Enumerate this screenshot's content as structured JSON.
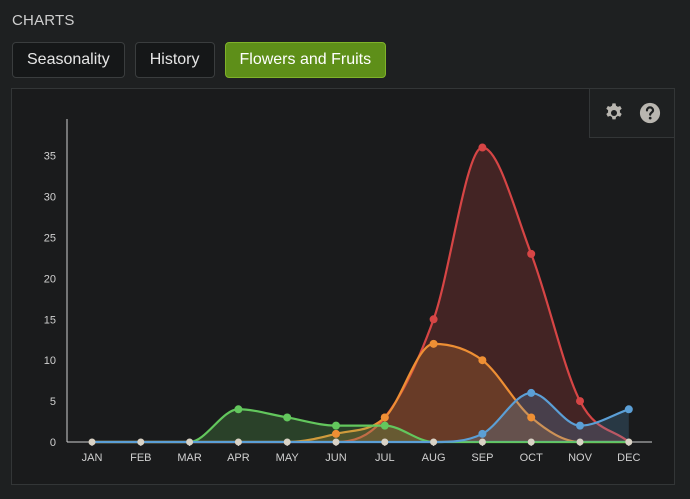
{
  "section_title": "CHARTS",
  "tabs": [
    {
      "label": "Seasonality",
      "active": false
    },
    {
      "label": "History",
      "active": false
    },
    {
      "label": "Flowers and Fruits",
      "active": true
    }
  ],
  "toolbar": {
    "settings_icon": "gear-icon",
    "help_icon": "question-circle-icon"
  },
  "colors": {
    "accent": "#5e8f19",
    "red": "#d64545",
    "orange": "#ee8f34",
    "green": "#63c75d",
    "blue": "#5b9fd6",
    "zero_points": "#d9d2c5"
  },
  "chart_data": {
    "type": "area",
    "categories": [
      "JAN",
      "FEB",
      "MAR",
      "APR",
      "MAY",
      "JUN",
      "JUL",
      "AUG",
      "SEP",
      "OCT",
      "NOV",
      "DEC"
    ],
    "ylim": [
      0,
      40
    ],
    "yticks": [
      0,
      5,
      10,
      15,
      20,
      25,
      30,
      35
    ],
    "grid": false,
    "series": [
      {
        "color_key": "red",
        "values": [
          0,
          0,
          0,
          0,
          0,
          0,
          3,
          15,
          36,
          23,
          5,
          0
        ]
      },
      {
        "color_key": "orange",
        "values": [
          0,
          0,
          0,
          0,
          0,
          1,
          3,
          12,
          10,
          3,
          0,
          0
        ]
      },
      {
        "color_key": "green",
        "values": [
          0,
          0,
          0,
          4,
          3,
          2,
          2,
          0,
          0,
          0,
          0,
          0
        ]
      },
      {
        "color_key": "blue",
        "values": [
          0,
          0,
          0,
          0,
          0,
          0,
          0,
          0,
          1,
          6,
          2,
          4
        ]
      }
    ]
  }
}
